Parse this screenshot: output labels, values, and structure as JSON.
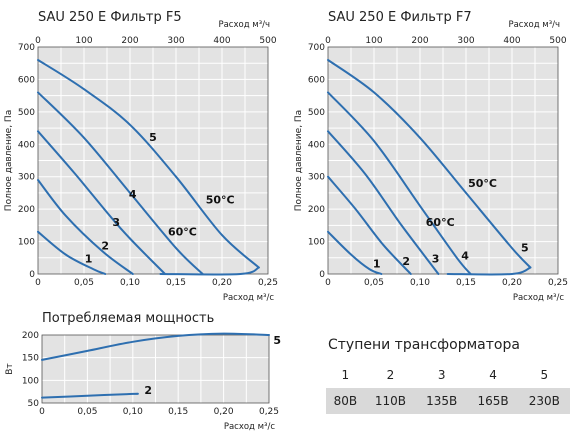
{
  "chart_data": [
    {
      "type": "line",
      "title": "SAU 250 E   Фильтр F5",
      "xlabel": "Расход м³/с",
      "x2label": "Расход м³/ч",
      "ylabel": "Полное давление, Па",
      "xlim": [
        0,
        0.25
      ],
      "ylim": [
        0,
        700
      ],
      "x2lim": [
        0,
        500
      ],
      "xticks": [
        "0",
        "0,05",
        "0,10",
        "0,15",
        "0,20",
        "0,25"
      ],
      "x2ticks": [
        "0",
        "100",
        "200",
        "300",
        "400",
        "500"
      ],
      "yticks": [
        "0",
        "100",
        "200",
        "300",
        "400",
        "500",
        "600",
        "700"
      ],
      "grid": true,
      "series": [
        {
          "name": "1",
          "points": [
            [
              0,
              130
            ],
            [
              0.03,
              60
            ],
            [
              0.06,
              15
            ],
            [
              0.073,
              0
            ]
          ]
        },
        {
          "name": "2",
          "points": [
            [
              0,
              290
            ],
            [
              0.03,
              180
            ],
            [
              0.07,
              70
            ],
            [
              0.103,
              0
            ]
          ]
        },
        {
          "name": "3",
          "points": [
            [
              0,
              440
            ],
            [
              0.04,
              310
            ],
            [
              0.09,
              140
            ],
            [
              0.138,
              0
            ]
          ]
        },
        {
          "name": "4",
          "points": [
            [
              0,
              560
            ],
            [
              0.05,
              420
            ],
            [
              0.1,
              250
            ],
            [
              0.15,
              80
            ],
            [
              0.179,
              0
            ]
          ]
        },
        {
          "name": "5",
          "points": [
            [
              0,
              660
            ],
            [
              0.05,
              570
            ],
            [
              0.1,
              460
            ],
            [
              0.15,
              300
            ],
            [
              0.2,
              120
            ],
            [
              0.24,
              20
            ]
          ]
        },
        {
          "name": "50°C",
          "points": [
            [
              0.133,
              0
            ],
            [
              0.22,
              0
            ],
            [
              0.24,
              20
            ]
          ]
        }
      ],
      "annotations": [
        {
          "text": "1",
          "x": 0.055,
          "y": 35
        },
        {
          "text": "2",
          "x": 0.073,
          "y": 75
        },
        {
          "text": "3",
          "x": 0.085,
          "y": 148
        },
        {
          "text": "4",
          "x": 0.103,
          "y": 235
        },
        {
          "text": "5",
          "x": 0.125,
          "y": 410
        },
        {
          "text": "60°C",
          "x": 0.157,
          "y": 118
        },
        {
          "text": "50°C",
          "x": 0.198,
          "y": 218
        }
      ]
    },
    {
      "type": "line",
      "title": "SAU 250 E   Фильтр F7",
      "xlabel": "Расход м³/с",
      "x2label": "Расход м³/ч",
      "ylabel": "Полное давление, Па",
      "xlim": [
        0,
        0.25
      ],
      "ylim": [
        0,
        700
      ],
      "x2lim": [
        0,
        500
      ],
      "xticks": [
        "0",
        "0,05",
        "0,10",
        "0,15",
        "0,20",
        "0,25"
      ],
      "x2ticks": [
        "0",
        "100",
        "200",
        "300",
        "400",
        "500"
      ],
      "yticks": [
        "0",
        "100",
        "200",
        "300",
        "400",
        "500",
        "600",
        "700"
      ],
      "grid": true,
      "series": [
        {
          "name": "1",
          "points": [
            [
              0,
              130
            ],
            [
              0.025,
              60
            ],
            [
              0.045,
              15
            ],
            [
              0.058,
              0
            ]
          ]
        },
        {
          "name": "2",
          "points": [
            [
              0,
              300
            ],
            [
              0.03,
              200
            ],
            [
              0.06,
              90
            ],
            [
              0.09,
              0
            ]
          ]
        },
        {
          "name": "3",
          "points": [
            [
              0,
              440
            ],
            [
              0.04,
              310
            ],
            [
              0.08,
              150
            ],
            [
              0.12,
              0
            ]
          ]
        },
        {
          "name": "4",
          "points": [
            [
              0,
              560
            ],
            [
              0.05,
              410
            ],
            [
              0.1,
              210
            ],
            [
              0.14,
              50
            ],
            [
              0.155,
              0
            ]
          ]
        },
        {
          "name": "5",
          "points": [
            [
              0,
              660
            ],
            [
              0.05,
              560
            ],
            [
              0.1,
              420
            ],
            [
              0.15,
              250
            ],
            [
              0.2,
              80
            ],
            [
              0.22,
              20
            ]
          ]
        },
        {
          "name": "50°C",
          "points": [
            [
              0.13,
              0
            ],
            [
              0.2,
              0
            ],
            [
              0.22,
              20
            ]
          ]
        }
      ],
      "annotations": [
        {
          "text": "1",
          "x": 0.053,
          "y": 20
        },
        {
          "text": "2",
          "x": 0.085,
          "y": 28
        },
        {
          "text": "3",
          "x": 0.117,
          "y": 35
        },
        {
          "text": "4",
          "x": 0.149,
          "y": 45
        },
        {
          "text": "5",
          "x": 0.214,
          "y": 70
        },
        {
          "text": "60°C",
          "x": 0.122,
          "y": 148
        },
        {
          "text": "50°C",
          "x": 0.168,
          "y": 268
        }
      ]
    },
    {
      "type": "line",
      "title": "Потребляемая мощность",
      "xlabel": "Расход м³/с",
      "ylabel": "Вт",
      "xlim": [
        0,
        0.25
      ],
      "ylim": [
        50,
        200
      ],
      "xticks": [
        "0",
        "0,05",
        "0,10",
        "0,15",
        "0,20",
        "0,25"
      ],
      "yticks": [
        "50",
        "100",
        "150",
        "200"
      ],
      "grid": true,
      "series": [
        {
          "name": "5",
          "points": [
            [
              0,
              145
            ],
            [
              0.05,
              165
            ],
            [
              0.1,
              185
            ],
            [
              0.15,
              198
            ],
            [
              0.2,
              203
            ],
            [
              0.25,
              200
            ]
          ]
        },
        {
          "name": "2",
          "points": [
            [
              0,
              62
            ],
            [
              0.05,
              66
            ],
            [
              0.1,
              70
            ],
            [
              0.105,
              70
            ]
          ]
        }
      ],
      "annotations": [
        {
          "text": "5",
          "x": 0.259,
          "y": 180
        },
        {
          "text": "2",
          "x": 0.117,
          "y": 70
        }
      ]
    }
  ],
  "transformer": {
    "title": "Ступени трансформатора",
    "steps": [
      "1",
      "2",
      "3",
      "4",
      "5"
    ],
    "voltages": [
      "80В",
      "110В",
      "135В",
      "165В",
      "230В"
    ]
  }
}
